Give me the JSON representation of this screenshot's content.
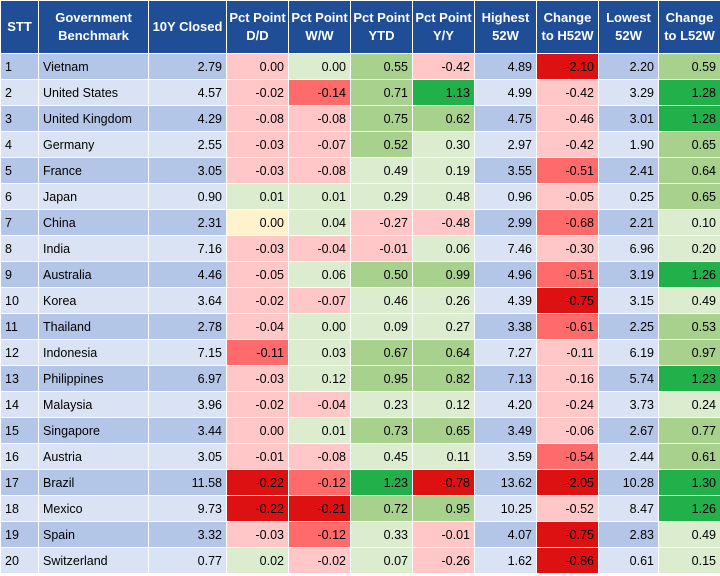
{
  "headers": [
    "STT",
    "Government Benchmark",
    "10Y Closed",
    "Pct Point D/D",
    "Pct Point W/W",
    "Pct Point YTD",
    "Pct Point Y/Y",
    "Highest 52W",
    "Change to H52W",
    "Lowest 52W",
    "Change to L52W"
  ],
  "colors": {
    "header_bg": "#1f4e96",
    "row_band_dark": "#b4c6e7",
    "row_band_light": "#dae3f3",
    "neg_light": "#ffc7c7",
    "neg_medium": "#ff6b6b",
    "neg_strong": "#dd1111",
    "pos_light": "#dcedcf",
    "pos_medium": "#a9d18e",
    "pos_strong": "#22b04a",
    "neutral_yellow": "#fff2cc"
  },
  "rows": [
    {
      "stt": "1",
      "country": "Vietnam",
      "closed": "2.79",
      "dd": "0.00",
      "ww": "0.00",
      "ytd": "0.55",
      "yy": "-0.42",
      "h52": "4.89",
      "ch52": "-2.10",
      "l52": "2.20",
      "cl52": "0.59"
    },
    {
      "stt": "2",
      "country": "United States",
      "closed": "4.57",
      "dd": "-0.02",
      "ww": "-0.14",
      "ytd": "0.71",
      "yy": "1.13",
      "h52": "4.99",
      "ch52": "-0.42",
      "l52": "3.29",
      "cl52": "1.28"
    },
    {
      "stt": "3",
      "country": "United Kingdom",
      "closed": "4.29",
      "dd": "-0.08",
      "ww": "-0.08",
      "ytd": "0.75",
      "yy": "0.62",
      "h52": "4.75",
      "ch52": "-0.46",
      "l52": "3.01",
      "cl52": "1.28"
    },
    {
      "stt": "4",
      "country": "Germany",
      "closed": "2.55",
      "dd": "-0.03",
      "ww": "-0.07",
      "ytd": "0.52",
      "yy": "0.30",
      "h52": "2.97",
      "ch52": "-0.42",
      "l52": "1.90",
      "cl52": "0.65"
    },
    {
      "stt": "5",
      "country": "France",
      "closed": "3.05",
      "dd": "-0.03",
      "ww": "-0.08",
      "ytd": "0.49",
      "yy": "0.19",
      "h52": "3.55",
      "ch52": "-0.51",
      "l52": "2.41",
      "cl52": "0.64"
    },
    {
      "stt": "6",
      "country": "Japan",
      "closed": "0.90",
      "dd": "0.01",
      "ww": "0.01",
      "ytd": "0.29",
      "yy": "0.48",
      "h52": "0.96",
      "ch52": "-0.05",
      "l52": "0.25",
      "cl52": "0.65"
    },
    {
      "stt": "7",
      "country": "China",
      "closed": "2.31",
      "dd": "0.00",
      "ww": "0.04",
      "ytd": "-0.27",
      "yy": "-0.48",
      "h52": "2.99",
      "ch52": "-0.68",
      "l52": "2.21",
      "cl52": "0.10"
    },
    {
      "stt": "8",
      "country": "India",
      "closed": "7.16",
      "dd": "-0.03",
      "ww": "-0.04",
      "ytd": "-0.01",
      "yy": "0.06",
      "h52": "7.46",
      "ch52": "-0.30",
      "l52": "6.96",
      "cl52": "0.20"
    },
    {
      "stt": "9",
      "country": "Australia",
      "closed": "4.46",
      "dd": "-0.05",
      "ww": "0.06",
      "ytd": "0.50",
      "yy": "0.99",
      "h52": "4.96",
      "ch52": "-0.51",
      "l52": "3.19",
      "cl52": "1.26"
    },
    {
      "stt": "10",
      "country": "Korea",
      "closed": "3.64",
      "dd": "-0.02",
      "ww": "-0.07",
      "ytd": "0.46",
      "yy": "0.26",
      "h52": "4.39",
      "ch52": "-0.75",
      "l52": "3.15",
      "cl52": "0.49"
    },
    {
      "stt": "11",
      "country": "Thailand",
      "closed": "2.78",
      "dd": "-0.04",
      "ww": "0.00",
      "ytd": "0.09",
      "yy": "0.27",
      "h52": "3.38",
      "ch52": "-0.61",
      "l52": "2.25",
      "cl52": "0.53"
    },
    {
      "stt": "12",
      "country": "Indonesia",
      "closed": "7.15",
      "dd": "-0.11",
      "ww": "0.03",
      "ytd": "0.67",
      "yy": "0.64",
      "h52": "7.27",
      "ch52": "-0.11",
      "l52": "6.19",
      "cl52": "0.97"
    },
    {
      "stt": "13",
      "country": "Philippines",
      "closed": "6.97",
      "dd": "-0.03",
      "ww": "0.12",
      "ytd": "0.95",
      "yy": "0.82",
      "h52": "7.13",
      "ch52": "-0.16",
      "l52": "5.74",
      "cl52": "1.23"
    },
    {
      "stt": "14",
      "country": "Malaysia",
      "closed": "3.96",
      "dd": "-0.02",
      "ww": "-0.04",
      "ytd": "0.23",
      "yy": "0.12",
      "h52": "4.20",
      "ch52": "-0.24",
      "l52": "3.73",
      "cl52": "0.24"
    },
    {
      "stt": "15",
      "country": "Singapore",
      "closed": "3.44",
      "dd": "0.00",
      "ww": "0.01",
      "ytd": "0.73",
      "yy": "0.65",
      "h52": "3.49",
      "ch52": "-0.06",
      "l52": "2.67",
      "cl52": "0.77"
    },
    {
      "stt": "16",
      "country": "Austria",
      "closed": "3.05",
      "dd": "-0.01",
      "ww": "-0.08",
      "ytd": "0.45",
      "yy": "0.11",
      "h52": "3.59",
      "ch52": "-0.54",
      "l52": "2.44",
      "cl52": "0.61"
    },
    {
      "stt": "17",
      "country": "Brazil",
      "closed": "11.58",
      "dd": "-0.22",
      "ww": "-0.12",
      "ytd": "1.23",
      "yy": "-0.78",
      "h52": "13.62",
      "ch52": "-2.05",
      "l52": "10.28",
      "cl52": "1.30"
    },
    {
      "stt": "18",
      "country": "Mexico",
      "closed": "9.73",
      "dd": "-0.22",
      "ww": "-0.21",
      "ytd": "0.72",
      "yy": "0.95",
      "h52": "10.25",
      "ch52": "-0.52",
      "l52": "8.47",
      "cl52": "1.26"
    },
    {
      "stt": "19",
      "country": "Spain",
      "closed": "3.32",
      "dd": "-0.03",
      "ww": "-0.12",
      "ytd": "0.33",
      "yy": "-0.01",
      "h52": "4.07",
      "ch52": "-0.75",
      "l52": "2.83",
      "cl52": "0.49"
    },
    {
      "stt": "20",
      "country": "Switzerland",
      "closed": "0.77",
      "dd": "0.02",
      "ww": "-0.02",
      "ytd": "0.07",
      "yy": "-0.26",
      "h52": "1.62",
      "ch52": "-0.86",
      "l52": "0.61",
      "cl52": "0.15"
    }
  ]
}
